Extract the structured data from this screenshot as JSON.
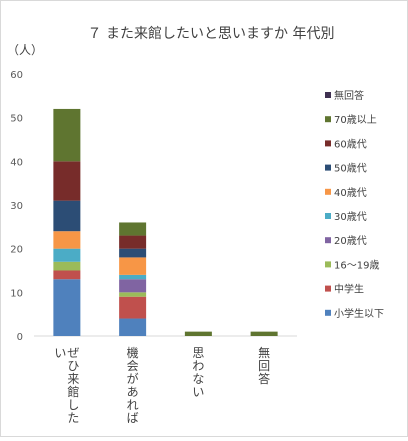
{
  "chart_data": {
    "type": "bar",
    "stacked": true,
    "title": "７ また来館したいと思いますか 年代別",
    "ylabel": "（人）",
    "xlabel": "",
    "ylim": [
      0,
      60
    ],
    "yticks": [
      0,
      10,
      20,
      30,
      40,
      50,
      60
    ],
    "grid": false,
    "legend_position": "right",
    "categories": [
      "ぜひ来館したい",
      "機会があれば",
      "思わない",
      "無回答"
    ],
    "series": [
      {
        "name": "小学生以下",
        "color": "#4f81bd",
        "values": [
          13,
          4,
          0,
          0
        ]
      },
      {
        "name": "中学生",
        "color": "#c0504d",
        "values": [
          2,
          5,
          0,
          0
        ]
      },
      {
        "name": "16～19歳",
        "color": "#9bbb59",
        "values": [
          2,
          1,
          0,
          0
        ]
      },
      {
        "name": "20歳代",
        "color": "#8064a2",
        "values": [
          0,
          3,
          0,
          0
        ]
      },
      {
        "name": "30歳代",
        "color": "#4bacc6",
        "values": [
          3,
          1,
          0,
          0
        ]
      },
      {
        "name": "40歳代",
        "color": "#f79646",
        "values": [
          4,
          4,
          0,
          0
        ]
      },
      {
        "name": "50歳代",
        "color": "#2c4d75",
        "values": [
          7,
          2,
          0,
          0
        ]
      },
      {
        "name": "60歳代",
        "color": "#772c2a",
        "values": [
          9,
          3,
          0,
          0
        ]
      },
      {
        "name": "70歳以上",
        "color": "#5f7530",
        "values": [
          12,
          3,
          1,
          1
        ]
      },
      {
        "name": "無回答",
        "color": "#3f3151",
        "values": [
          0,
          0,
          0,
          0
        ]
      }
    ]
  }
}
